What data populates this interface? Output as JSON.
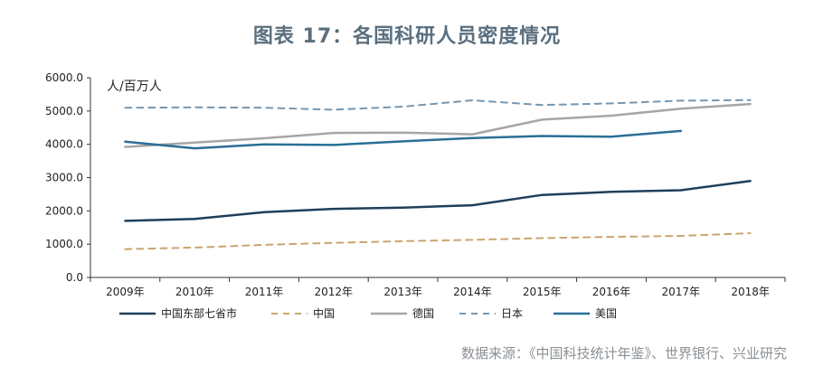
{
  "chart_data": {
    "type": "line",
    "title": "图表 17：各国科研人员密度情况",
    "unit_label": "人/百万人",
    "x": [
      "2009年",
      "2010年",
      "2011年",
      "2012年",
      "2013年",
      "2014年",
      "2015年",
      "2016年",
      "2017年",
      "2018年"
    ],
    "ylim": [
      0,
      6000
    ],
    "yticks": [
      "0.0",
      "1000.0",
      "2000.0",
      "3000.0",
      "4000.0",
      "5000.0",
      "6000.0"
    ],
    "grid": false,
    "legend_position": "bottom",
    "series": [
      {
        "name": "中国东部七省市",
        "color": "#1f3f5b",
        "dash": "solid",
        "width": 2.5,
        "values": [
          1700,
          1760,
          1960,
          2060,
          2100,
          2170,
          2480,
          2570,
          2620,
          2900
        ]
      },
      {
        "name": "中国",
        "color": "#c9a56d",
        "dash": "dashed",
        "width": 2,
        "values": [
          850,
          900,
          980,
          1040,
          1090,
          1130,
          1180,
          1220,
          1250,
          1330
        ]
      },
      {
        "name": "德国",
        "color": "#a6a6a6",
        "dash": "solid",
        "width": 2.5,
        "values": [
          3920,
          4050,
          4180,
          4340,
          4350,
          4300,
          4740,
          4860,
          5070,
          5210
        ]
      },
      {
        "name": "日本",
        "color": "#7596b0",
        "dash": "dashed",
        "width": 2,
        "values": [
          5100,
          5110,
          5100,
          5040,
          5130,
          5320,
          5180,
          5230,
          5310,
          5330
        ]
      },
      {
        "name": "美国",
        "color": "#2a6f96",
        "dash": "solid",
        "width": 2.5,
        "values": [
          4080,
          3880,
          4000,
          3980,
          4090,
          4190,
          4250,
          4230,
          4400,
          null
        ]
      }
    ]
  },
  "source_note": "数据来源：《中国科技统计年鉴》、世界银行、兴业研究"
}
